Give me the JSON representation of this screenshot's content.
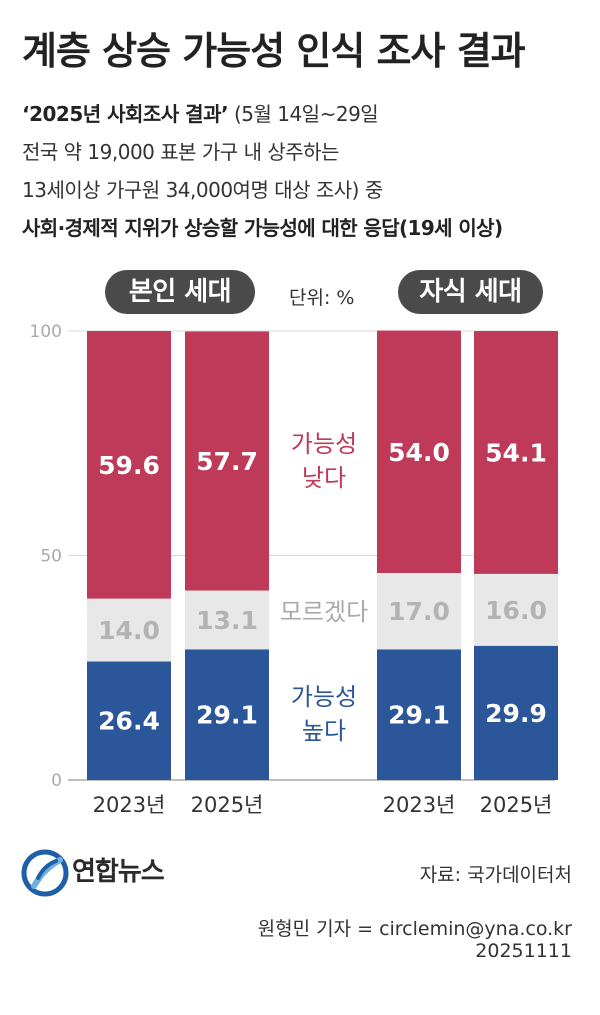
{
  "header": {
    "title": "계층 상승 가능성 인식 조사 결과",
    "source_line1_bold": "‘2025년 사회조사 결과’",
    "source_line1_rest": " (5월 14일~29일",
    "source_line2": "전국 약 19,000 표본 가구 내 상주하는",
    "source_line3": "13세이상 가구원 34,000여명 대상 조사) 중",
    "subhead": "사회·경제적 지위가 상승할 가능성에 대한 응답(19세 이상)"
  },
  "groups": {
    "self": "본인 세대",
    "children": "자식 세대"
  },
  "unit_label": "단위: %",
  "legend_labels": {
    "low_line1": "가능성",
    "low_line2": "낮다",
    "unknown": "모르겠다",
    "high_line1": "가능성",
    "high_line2": "높다"
  },
  "chart_data": {
    "type": "bar",
    "stacked": true,
    "categories": [
      "2023년",
      "2025년",
      "2023년",
      "2025년"
    ],
    "groups": [
      "본인 세대",
      "본인 세대",
      "자식 세대",
      "자식 세대"
    ],
    "series": [
      {
        "name": "가능성 높다",
        "values": [
          26.4,
          29.1,
          29.1,
          29.9
        ],
        "color": "#2b579a"
      },
      {
        "name": "모르겠다",
        "values": [
          14.0,
          13.1,
          17.0,
          16.0
        ],
        "color": "#e8e8e8"
      },
      {
        "name": "가능성 낮다",
        "values": [
          59.6,
          57.7,
          54.0,
          54.1
        ],
        "color": "#bf3a58"
      }
    ],
    "yticks": [
      0,
      50,
      100
    ],
    "ylim": [
      0,
      100
    ],
    "xlabel": "",
    "ylabel": "",
    "unit": "%"
  },
  "footer": {
    "logo": "연합뉴스",
    "source": "자료: 국가데이터처",
    "reporter": "원형민 기자 = circlemin@yna.co.kr",
    "date": "20251111"
  }
}
